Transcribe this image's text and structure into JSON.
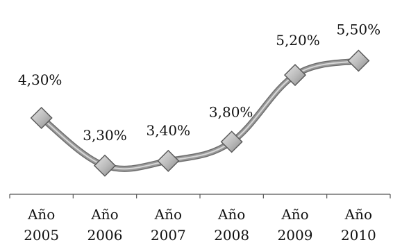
{
  "chart_data": {
    "type": "line",
    "categories": [
      [
        "Año",
        "2005"
      ],
      [
        "Año",
        "2006"
      ],
      [
        "Año",
        "2007"
      ],
      [
        "Año",
        "2008"
      ],
      [
        "Año",
        "2009"
      ],
      [
        "Año",
        "2010"
      ]
    ],
    "values": [
      4.3,
      3.3,
      3.4,
      3.8,
      5.2,
      5.5
    ],
    "data_labels": [
      "4,30%",
      "3,30%",
      "3,40%",
      "3,80%",
      "5,20%",
      "5,50%"
    ],
    "title": "",
    "xlabel": "",
    "ylabel": "",
    "ylim": [
      2.7,
      5.9
    ],
    "grid": false,
    "legend": "none",
    "line_color": "#9a9a9a",
    "marker_color": "#bdbdbd",
    "marker_shape": "diamond"
  }
}
